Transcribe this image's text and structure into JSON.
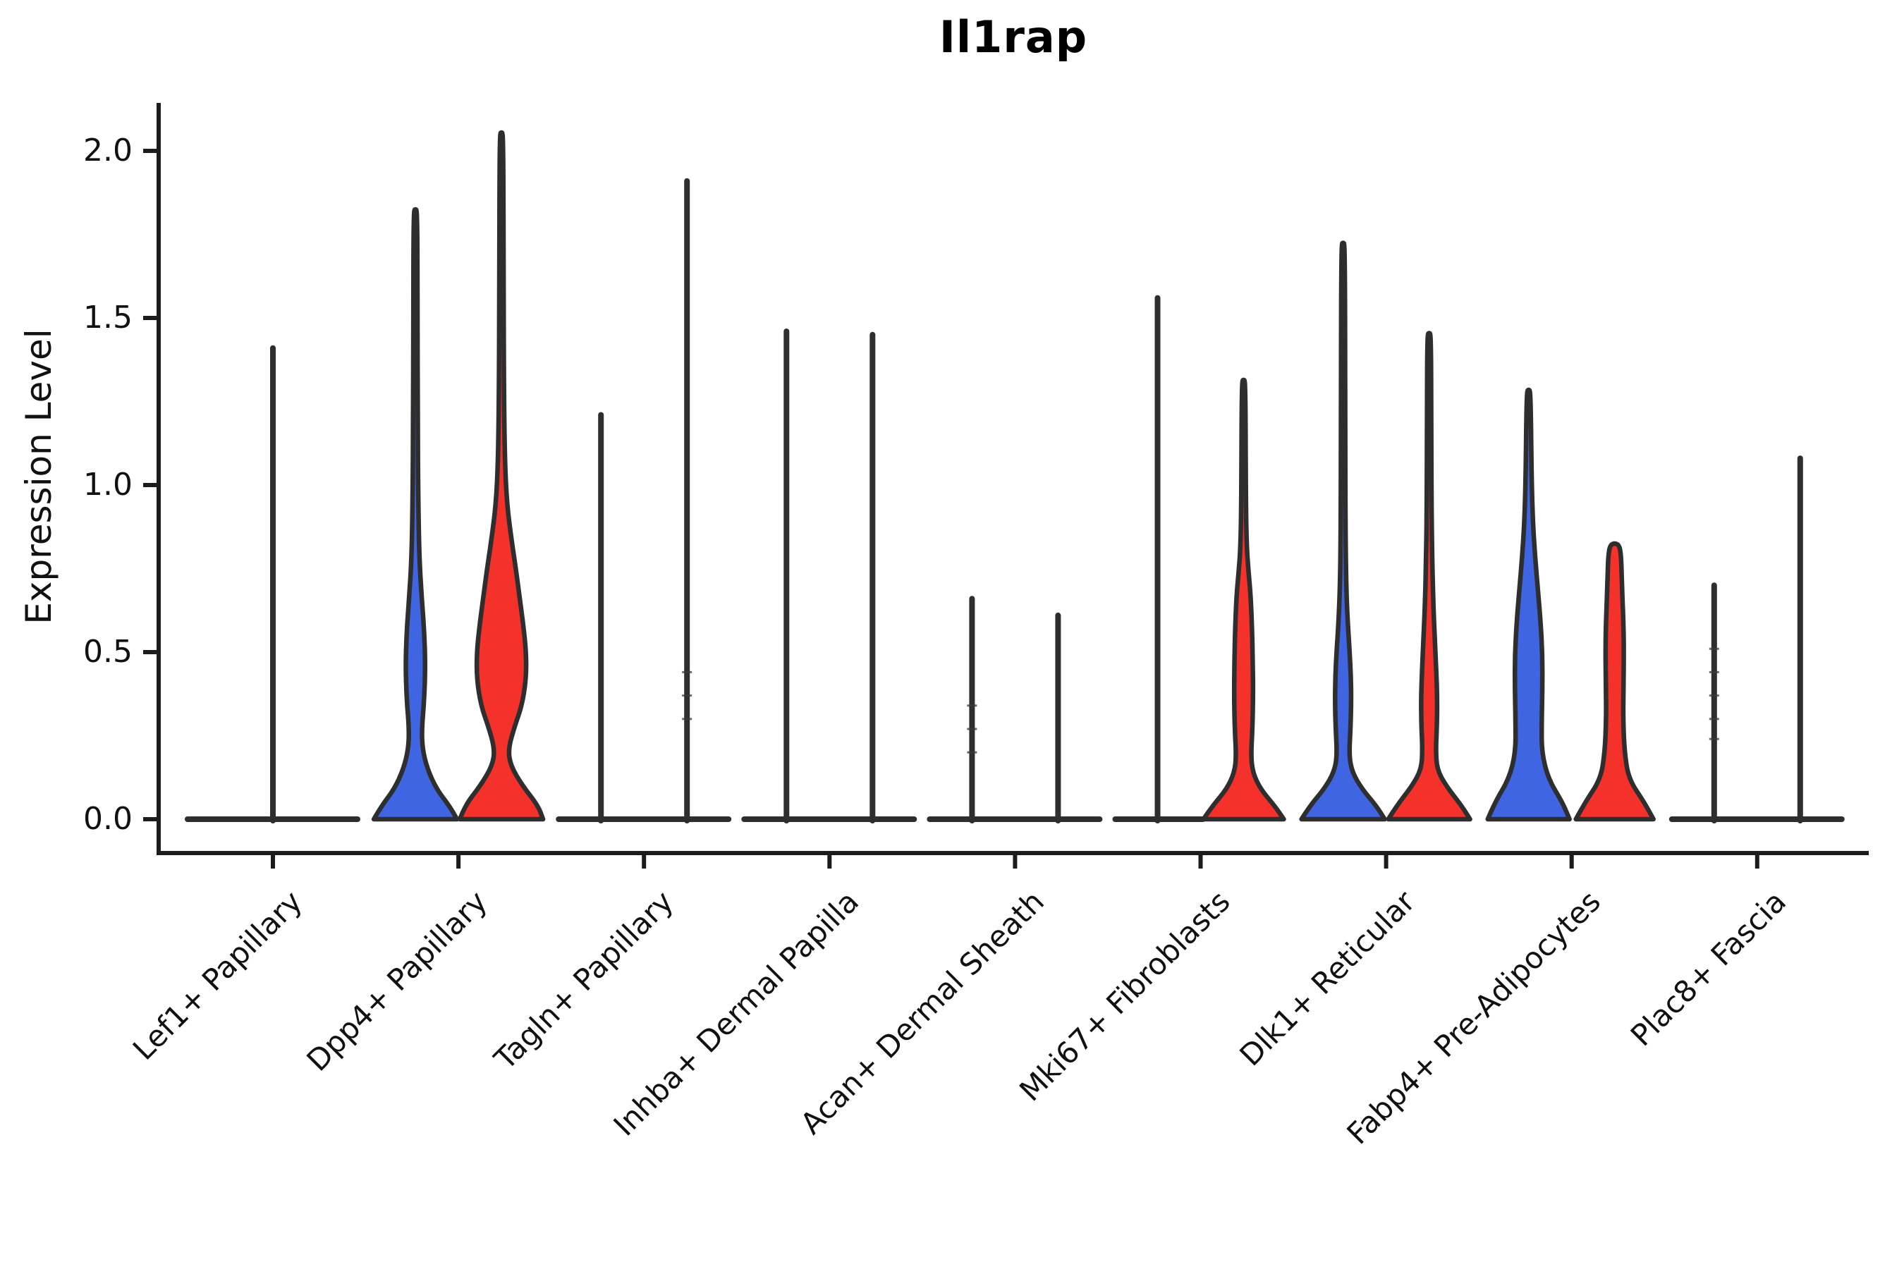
{
  "title": "Il1rap",
  "y_axis": {
    "label": "Expression Level",
    "ticks": [
      {
        "label": "2.0",
        "value": 2.0
      },
      {
        "label": "1.5",
        "value": 1.5
      },
      {
        "label": "1.0",
        "value": 1.0
      },
      {
        "label": "0.5",
        "value": 0.5
      },
      {
        "label": "0.0",
        "value": 0.0
      }
    ]
  },
  "colors": {
    "blue_fill": "#3F65E3",
    "red_fill": "#F5312B",
    "violin_stroke": "#2E2E2E",
    "axis_stroke": "#1C1C1C",
    "background": "#FFFFFF"
  },
  "chart_data": {
    "type": "violin",
    "title": "Il1rap",
    "xlabel": "",
    "ylabel": "Expression Level",
    "ylim": [
      0,
      2.14
    ],
    "yticks": [
      0.0,
      0.5,
      1.0,
      1.5,
      2.0
    ],
    "grid": false,
    "legend": "none",
    "split_groups": {
      "left": "blue",
      "right": "red"
    },
    "categories": [
      {
        "label": "Lef1+ Papillary",
        "baseline": "full",
        "violins": [
          {
            "side": "center",
            "fill": "none",
            "shape": "spike",
            "max_expression": 1.41
          }
        ]
      },
      {
        "label": "Dpp4+ Papillary",
        "baseline": "none",
        "violins": [
          {
            "side": "left",
            "fill": "blue",
            "shape": "body",
            "max_expression": 1.82,
            "profile": [
              [
                0,
                59
              ],
              [
                0.04,
                48
              ],
              [
                0.09,
                30
              ],
              [
                0.15,
                17
              ],
              [
                0.21,
                10
              ],
              [
                0.27,
                9
              ],
              [
                0.36,
                12.5
              ],
              [
                0.46,
                14
              ],
              [
                0.56,
                12.5
              ],
              [
                0.66,
                9
              ],
              [
                0.78,
                5.5
              ],
              [
                0.95,
                4
              ],
              [
                1.2,
                3.2
              ],
              [
                1.5,
                3
              ],
              [
                1.82,
                2.6
              ]
            ]
          },
          {
            "side": "right",
            "fill": "red",
            "shape": "body",
            "max_expression": 2.05,
            "profile": [
              [
                0,
                59
              ],
              [
                0.04,
                52
              ],
              [
                0.1,
                30
              ],
              [
                0.16,
                13
              ],
              [
                0.21,
                9.5
              ],
              [
                0.28,
                19
              ],
              [
                0.34,
                29
              ],
              [
                0.42,
                35
              ],
              [
                0.5,
                35
              ],
              [
                0.58,
                31
              ],
              [
                0.66,
                26
              ],
              [
                0.74,
                21
              ],
              [
                0.84,
                14
              ],
              [
                0.94,
                8
              ],
              [
                1.06,
                5
              ],
              [
                1.25,
                3.6
              ],
              [
                1.6,
                3
              ],
              [
                2.05,
                2.6
              ]
            ]
          }
        ]
      },
      {
        "label": "Tagln+ Papillary",
        "baseline": "full",
        "violins": [
          {
            "side": "left",
            "fill": "none",
            "shape": "spike",
            "max_expression": 1.21
          },
          {
            "side": "right",
            "fill": "none",
            "shape": "spike",
            "max_expression": 1.91,
            "dashes": [
              0.3,
              0.37,
              0.44
            ]
          }
        ]
      },
      {
        "label": "Inhba+ Dermal Papilla",
        "baseline": "full",
        "violins": [
          {
            "side": "left",
            "fill": "none",
            "shape": "spike",
            "max_expression": 1.46
          },
          {
            "side": "right",
            "fill": "none",
            "shape": "spike",
            "max_expression": 1.45
          }
        ]
      },
      {
        "label": "Acan+ Dermal Sheath",
        "baseline": "full",
        "violins": [
          {
            "side": "left",
            "fill": "none",
            "shape": "spike",
            "max_expression": 0.66,
            "dashes": [
              0.2,
              0.27,
              0.34
            ]
          },
          {
            "side": "right",
            "fill": "none",
            "shape": "spike",
            "max_expression": 0.61
          }
        ]
      },
      {
        "label": "Mki67+ Fibroblasts",
        "baseline": "left-half",
        "violins": [
          {
            "side": "left",
            "fill": "none",
            "shape": "spike",
            "max_expression": 1.56
          },
          {
            "side": "right",
            "fill": "red",
            "shape": "body",
            "max_expression": 1.31,
            "profile": [
              [
                0,
                57
              ],
              [
                0.04,
                44
              ],
              [
                0.09,
                24
              ],
              [
                0.14,
                13
              ],
              [
                0.19,
                10.5
              ],
              [
                0.27,
                12.5
              ],
              [
                0.37,
                13.5
              ],
              [
                0.47,
                13
              ],
              [
                0.57,
                12
              ],
              [
                0.67,
                10
              ],
              [
                0.74,
                7
              ],
              [
                0.81,
                4.5
              ],
              [
                0.95,
                3.2
              ],
              [
                1.31,
                2.6
              ]
            ]
          }
        ]
      },
      {
        "label": "Dlk1+ Reticular",
        "baseline": "none",
        "violins": [
          {
            "side": "left",
            "fill": "blue",
            "shape": "body",
            "max_expression": 1.72,
            "profile": [
              [
                0,
                59
              ],
              [
                0.04,
                47
              ],
              [
                0.09,
                27
              ],
              [
                0.14,
                13
              ],
              [
                0.19,
                8.5
              ],
              [
                0.27,
                10.5
              ],
              [
                0.35,
                11.5
              ],
              [
                0.43,
                11
              ],
              [
                0.51,
                9
              ],
              [
                0.59,
                6.5
              ],
              [
                0.69,
                4.5
              ],
              [
                0.85,
                3.4
              ],
              [
                1.2,
                3
              ],
              [
                1.72,
                2.6
              ]
            ]
          },
          {
            "side": "right",
            "fill": "red",
            "shape": "body",
            "max_expression": 1.45,
            "profile": [
              [
                0,
                58
              ],
              [
                0.04,
                46
              ],
              [
                0.1,
                24
              ],
              [
                0.15,
                11
              ],
              [
                0.21,
                9.5
              ],
              [
                0.28,
                11
              ],
              [
                0.36,
                11.5
              ],
              [
                0.45,
                10
              ],
              [
                0.54,
                8
              ],
              [
                0.64,
                6
              ],
              [
                0.76,
                4.5
              ],
              [
                0.92,
                3.4
              ],
              [
                1.2,
                3
              ],
              [
                1.45,
                2.6
              ]
            ]
          }
        ]
      },
      {
        "label": "Fabp4+ Pre-Adipocytes",
        "baseline": "none",
        "violins": [
          {
            "side": "left",
            "fill": "blue",
            "shape": "body",
            "max_expression": 1.28,
            "profile": [
              [
                0,
                58
              ],
              [
                0.05,
                48
              ],
              [
                0.12,
                28
              ],
              [
                0.2,
                18.5
              ],
              [
                0.29,
                18.5
              ],
              [
                0.39,
                19.5
              ],
              [
                0.49,
                19.5
              ],
              [
                0.59,
                17
              ],
              [
                0.69,
                13
              ],
              [
                0.79,
                9
              ],
              [
                0.89,
                6
              ],
              [
                1.02,
                4.2
              ],
              [
                1.28,
                2.8
              ]
            ]
          },
          {
            "side": "right",
            "fill": "red",
            "shape": "body",
            "max_expression": 0.82,
            "profile": [
              [
                0,
                55
              ],
              [
                0.05,
                42
              ],
              [
                0.12,
                20
              ],
              [
                0.2,
                14
              ],
              [
                0.3,
                12
              ],
              [
                0.4,
                12.5
              ],
              [
                0.5,
                13
              ],
              [
                0.58,
                12.5
              ],
              [
                0.66,
                11
              ],
              [
                0.73,
                10
              ],
              [
                0.79,
                9
              ],
              [
                0.82,
                6.5
              ]
            ]
          }
        ]
      },
      {
        "label": "Plac8+ Fascia",
        "baseline": "full",
        "violins": [
          {
            "side": "left",
            "fill": "none",
            "shape": "spike",
            "max_expression": 0.7,
            "dashes": [
              0.24,
              0.3,
              0.37,
              0.44,
              0.51
            ]
          },
          {
            "side": "right",
            "fill": "none",
            "shape": "spike",
            "max_expression": 1.08
          }
        ]
      }
    ]
  }
}
